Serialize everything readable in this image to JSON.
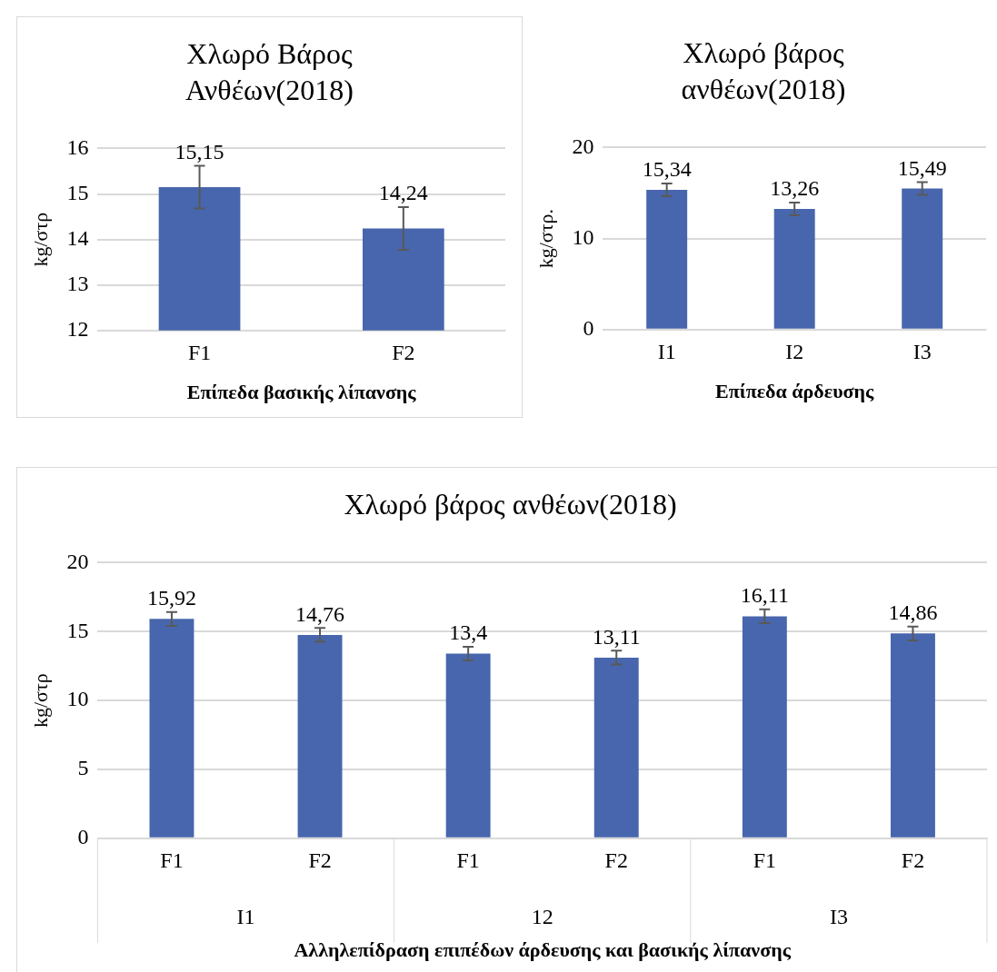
{
  "chart_data": [
    {
      "type": "bar",
      "title": "Χλωρό Βάρος Ανθέων(2018)",
      "xlabel": "Επίπεδα βασικής λίπανσης",
      "ylabel": "kg/στρ",
      "categories": [
        "F1",
        "F2"
      ],
      "series": [
        {
          "color": "#4866ad",
          "values": [
            15.15,
            14.24
          ],
          "value_labels": [
            "15,15",
            "14,24"
          ],
          "errors": [
            0.47,
            0.47
          ]
        }
      ],
      "ylim": [
        12,
        16
      ],
      "yticks": [
        12,
        13,
        14,
        15,
        16
      ],
      "grid": "y",
      "legend": false
    },
    {
      "type": "bar",
      "title": "Χλωρό βάρος ανθέων(2018)",
      "xlabel": "Επίπεδα άρδευσης",
      "ylabel": "kg/στρ.",
      "categories": [
        "I1",
        "I2",
        "I3"
      ],
      "series": [
        {
          "color": "#4866ad",
          "values": [
            15.34,
            13.26,
            15.49
          ],
          "value_labels": [
            "15,34",
            "13,26",
            "15,49"
          ],
          "errors": [
            0.7,
            0.7,
            0.7
          ]
        }
      ],
      "ylim": [
        0,
        20
      ],
      "yticks": [
        0,
        10,
        20
      ],
      "grid": "y",
      "legend": false
    },
    {
      "type": "bar",
      "title": "Χλωρό βάρος ανθέων(2018)",
      "xlabel": "Αλληλεπίδραση επιπέδων άρδευσης και βασικής λίπανσης",
      "ylabel": "kg/στρ",
      "categories": [
        "F1",
        "F2",
        "F1",
        "F2",
        "F1",
        "F2"
      ],
      "annotations": [
        "I1",
        "12",
        "I3"
      ],
      "series": [
        {
          "color": "#4866ad",
          "values": [
            15.92,
            14.76,
            13.4,
            13.11,
            16.11,
            14.86
          ],
          "value_labels": [
            "15,92",
            "14,76",
            "13,4",
            "13,11",
            "16,11",
            "14,86"
          ],
          "errors": [
            0.5,
            0.5,
            0.5,
            0.5,
            0.5,
            0.5
          ]
        }
      ],
      "ylim": [
        0,
        20
      ],
      "yticks": [
        0,
        5,
        10,
        15,
        20
      ],
      "grid": "y",
      "legend": false
    }
  ]
}
